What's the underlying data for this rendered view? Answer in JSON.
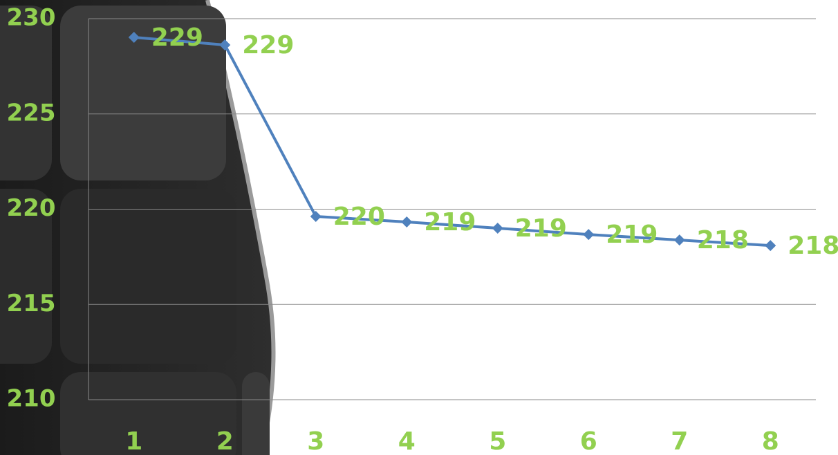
{
  "chart_data": {
    "type": "line",
    "categories": [
      "1",
      "2",
      "3",
      "4",
      "5",
      "6",
      "7",
      "8"
    ],
    "series": [
      {
        "color": "#4f81bd",
        "values": [
          229.02,
          228.62,
          219.62,
          219.33,
          219.0,
          218.67,
          218.38,
          218.09
        ],
        "value_labels": [
          "229",
          "229",
          "220",
          "219",
          "219",
          "219",
          "218",
          "218"
        ]
      }
    ],
    "ylim": [
      210,
      230
    ],
    "yticks": [
      210,
      215,
      220,
      225,
      230
    ],
    "grid": true,
    "label_color": "#92d050"
  }
}
